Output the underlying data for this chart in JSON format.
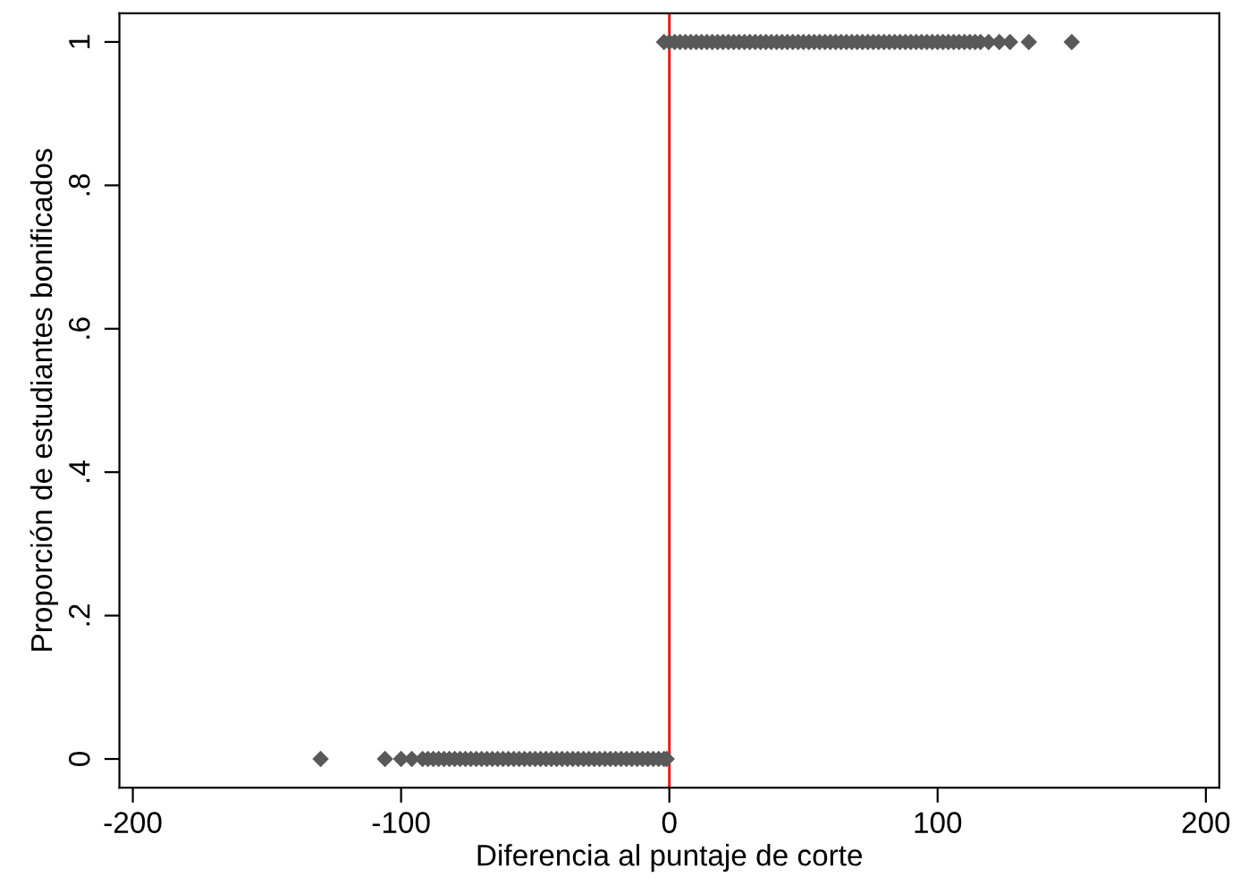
{
  "chart_data": {
    "type": "scatter",
    "xlabel": "Diferencia al puntaje de corte",
    "ylabel": "Proporción de estudiantes bonificados",
    "xlim": [
      -205,
      205
    ],
    "xticks": [
      -200,
      -100,
      0,
      100,
      200
    ],
    "ylim": [
      -0.04,
      1.04
    ],
    "yticks": [
      0,
      {
        "value": 0.2,
        "label": ".2"
      },
      {
        "value": 0.4,
        "label": ".4"
      },
      {
        "value": 0.6,
        "label": ".6"
      },
      {
        "value": 0.8,
        "label": ".8"
      },
      1
    ],
    "grid": false,
    "marker": "diamond",
    "ref_lines": [
      {
        "axis": "x",
        "value": 0,
        "color": "#ff0000"
      }
    ],
    "series": [
      {
        "color": "#595959",
        "x": [
          -130,
          -106,
          -100,
          -96,
          -92,
          -90,
          -88,
          -86,
          -84,
          -82,
          -80,
          -78,
          -76,
          -74,
          -72,
          -70,
          -68,
          -66,
          -64,
          -62,
          -60,
          -58,
          -56,
          -54,
          -52,
          -50,
          -48,
          -46,
          -44,
          -42,
          -40,
          -38,
          -36,
          -34,
          -32,
          -30,
          -28,
          -26,
          -24,
          -22,
          -20,
          -18,
          -16,
          -14,
          -12,
          -10,
          -8,
          -6,
          -4,
          -2,
          -1
        ],
        "values": [
          0,
          0,
          0,
          0,
          0,
          0,
          0,
          0,
          0,
          0,
          0,
          0,
          0,
          0,
          0,
          0,
          0,
          0,
          0,
          0,
          0,
          0,
          0,
          0,
          0,
          0,
          0,
          0,
          0,
          0,
          0,
          0,
          0,
          0,
          0,
          0,
          0,
          0,
          0,
          0,
          0,
          0,
          0,
          0,
          0,
          0,
          0,
          0,
          0,
          0,
          0
        ]
      },
      {
        "color": "#595959",
        "x": [
          -2,
          0,
          2,
          4,
          6,
          8,
          10,
          12,
          14,
          16,
          18,
          20,
          22,
          24,
          26,
          28,
          30,
          32,
          34,
          36,
          38,
          40,
          42,
          44,
          46,
          48,
          50,
          52,
          54,
          56,
          58,
          60,
          62,
          64,
          66,
          68,
          70,
          72,
          74,
          76,
          78,
          80,
          82,
          84,
          86,
          88,
          90,
          92,
          94,
          96,
          98,
          100,
          102,
          104,
          106,
          108,
          110,
          112,
          114,
          116,
          119,
          123,
          127,
          134,
          150
        ],
        "values": [
          1,
          1,
          1,
          1,
          1,
          1,
          1,
          1,
          1,
          1,
          1,
          1,
          1,
          1,
          1,
          1,
          1,
          1,
          1,
          1,
          1,
          1,
          1,
          1,
          1,
          1,
          1,
          1,
          1,
          1,
          1,
          1,
          1,
          1,
          1,
          1,
          1,
          1,
          1,
          1,
          1,
          1,
          1,
          1,
          1,
          1,
          1,
          1,
          1,
          1,
          1,
          1,
          1,
          1,
          1,
          1,
          1,
          1,
          1,
          1,
          1,
          1,
          1,
          1,
          1
        ]
      }
    ]
  }
}
